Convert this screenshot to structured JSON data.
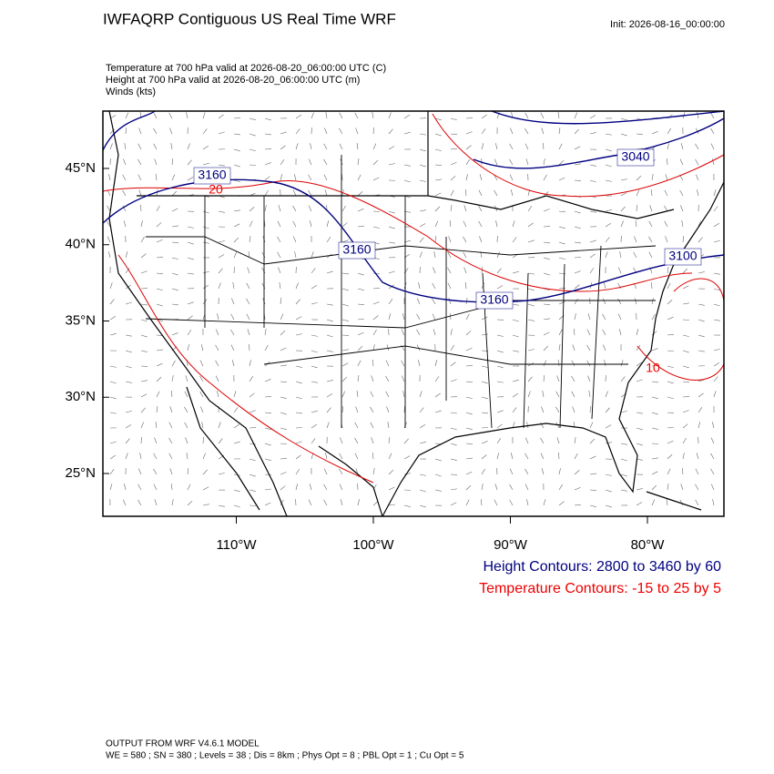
{
  "header": {
    "title": "IWFAQRP Contiguous US Real Time WRF",
    "init": "Init: 2026-08-16_00:00:00",
    "fields": [
      "Temperature at 700 hPa valid at 2026-08-20_06:00:00 UTC   (C)",
      "Height at 700 hPa valid at 2026-08-20_06:00:00 UTC   (m)",
      "Winds   (kts)"
    ]
  },
  "map": {
    "lat_ticks": [
      {
        "value": 45,
        "label": "45°N"
      },
      {
        "value": 40,
        "label": "40°N"
      },
      {
        "value": 35,
        "label": "35°N"
      },
      {
        "value": 30,
        "label": "30°N"
      },
      {
        "value": 25,
        "label": "25°N"
      }
    ],
    "lon_ticks": [
      {
        "value": -110,
        "label": "110°W"
      },
      {
        "value": -100,
        "label": "100°W"
      },
      {
        "value": -90,
        "label": "90°W"
      },
      {
        "value": -80,
        "label": "80°W"
      }
    ],
    "height_labels": [
      "3160",
      "3160",
      "3160",
      "3100",
      "3040"
    ],
    "temperature_labels": [
      "20",
      "10"
    ]
  },
  "legend": {
    "height": "Height Contours: 2800 to 3460 by 60",
    "temperature": "Temperature Contours: -15 to 25 by 5"
  },
  "footer": {
    "model": "OUTPUT FROM WRF V4.6.1 MODEL",
    "settings": "WE = 580 ; SN = 380 ; Levels = 38 ; Dis = 8km ; Phys Opt = 8 ; PBL Opt = 1 ; Cu Opt = 5"
  }
}
